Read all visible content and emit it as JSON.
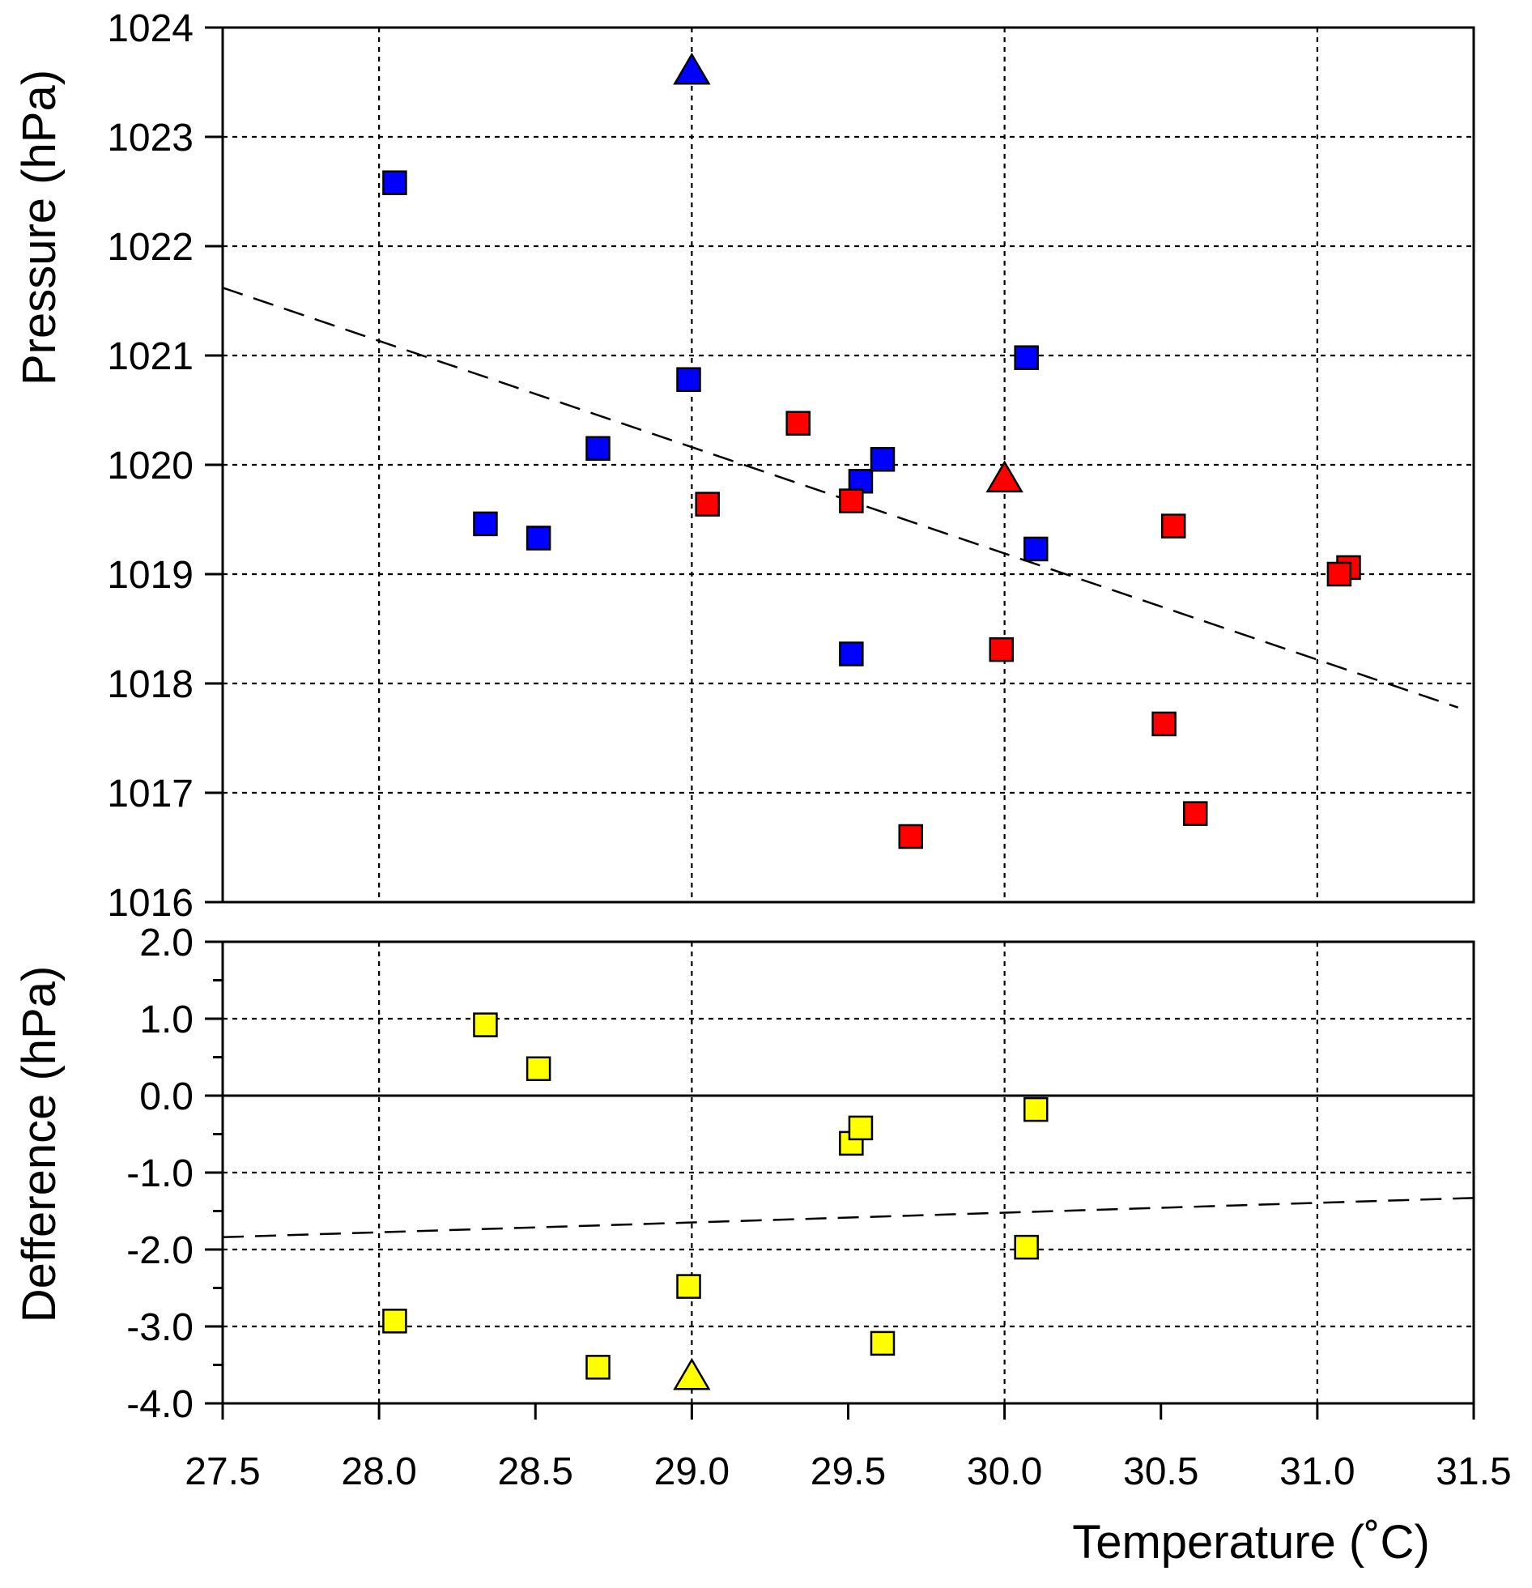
{
  "chart_data": [
    {
      "type": "scatter",
      "title": "",
      "xlabel": "",
      "ylabel": "Pressure (hPa)",
      "xlim": [
        27.5,
        31.5
      ],
      "ylim": [
        1016,
        1024
      ],
      "grid": true,
      "x_gridlines": [
        28.0,
        29.0,
        30.0,
        31.0
      ],
      "y_ticks": [
        "1016",
        "1017",
        "1018",
        "1019",
        "1020",
        "1021",
        "1022",
        "1023",
        "1024"
      ],
      "colors": {
        "blue": "#0000ff",
        "red": "#ff0000"
      },
      "series": [
        {
          "marker": "square",
          "color": "#0000ff",
          "points": [
            {
              "x": 28.05,
              "y": 1022.58
            },
            {
              "x": 28.34,
              "y": 1019.46
            },
            {
              "x": 28.51,
              "y": 1019.33
            },
            {
              "x": 28.7,
              "y": 1020.15
            },
            {
              "x": 28.99,
              "y": 1020.78
            },
            {
              "x": 29.51,
              "y": 1018.27
            },
            {
              "x": 29.54,
              "y": 1019.85
            },
            {
              "x": 29.61,
              "y": 1020.05
            },
            {
              "x": 30.07,
              "y": 1020.98
            },
            {
              "x": 30.1,
              "y": 1019.23
            }
          ]
        },
        {
          "marker": "triangle",
          "color": "#0000ff",
          "points": [
            {
              "x": 29.0,
              "y": 1023.58
            }
          ]
        },
        {
          "marker": "square",
          "color": "#ff0000",
          "points": [
            {
              "x": 29.05,
              "y": 1019.64
            },
            {
              "x": 29.34,
              "y": 1020.38
            },
            {
              "x": 29.51,
              "y": 1019.67
            },
            {
              "x": 29.7,
              "y": 1016.6
            },
            {
              "x": 29.99,
              "y": 1018.31
            },
            {
              "x": 30.51,
              "y": 1017.63
            },
            {
              "x": 30.54,
              "y": 1019.44
            },
            {
              "x": 30.61,
              "y": 1016.81
            },
            {
              "x": 31.1,
              "y": 1019.06
            },
            {
              "x": 31.07,
              "y": 1019.0
            }
          ]
        },
        {
          "marker": "triangle",
          "color": "#ff0000",
          "points": [
            {
              "x": 30.0,
              "y": 1019.85
            }
          ]
        }
      ],
      "trendline": {
        "x": [
          27.5,
          31.45
        ],
        "y": [
          1021.62,
          1017.78
        ]
      }
    },
    {
      "type": "scatter",
      "title": "",
      "xlabel": "Temperature (˚C)",
      "ylabel": "Defference (hPa)",
      "xlim": [
        27.5,
        31.5
      ],
      "ylim": [
        -4.0,
        2.0
      ],
      "grid": true,
      "x_gridlines": [
        28.0,
        29.0,
        30.0,
        31.0
      ],
      "x_ticks": [
        "27.5",
        "28.0",
        "28.5",
        "29.0",
        "29.5",
        "30.0",
        "30.5",
        "31.0",
        "31.5"
      ],
      "y_ticks": [
        "-4.0",
        "-3.0",
        "-2.0",
        "-1.0",
        "0.0",
        "1.0",
        "2.0"
      ],
      "colors": {
        "yellow": "#ffff00"
      },
      "series": [
        {
          "marker": "square",
          "color": "#ffff00",
          "points": [
            {
              "x": 28.05,
              "y": -2.93
            },
            {
              "x": 28.34,
              "y": 0.92
            },
            {
              "x": 28.51,
              "y": 0.35
            },
            {
              "x": 28.7,
              "y": -3.53
            },
            {
              "x": 28.99,
              "y": -2.48
            },
            {
              "x": 29.51,
              "y": -0.62
            },
            {
              "x": 29.54,
              "y": -0.42
            },
            {
              "x": 29.61,
              "y": -3.22
            },
            {
              "x": 30.07,
              "y": -1.97
            },
            {
              "x": 30.1,
              "y": -0.18
            }
          ]
        },
        {
          "marker": "triangle",
          "color": "#ffff00",
          "points": [
            {
              "x": 29.0,
              "y": -3.68
            }
          ]
        }
      ],
      "trendline": {
        "x": [
          27.5,
          31.5
        ],
        "y": [
          -1.84,
          -1.33
        ]
      }
    }
  ]
}
